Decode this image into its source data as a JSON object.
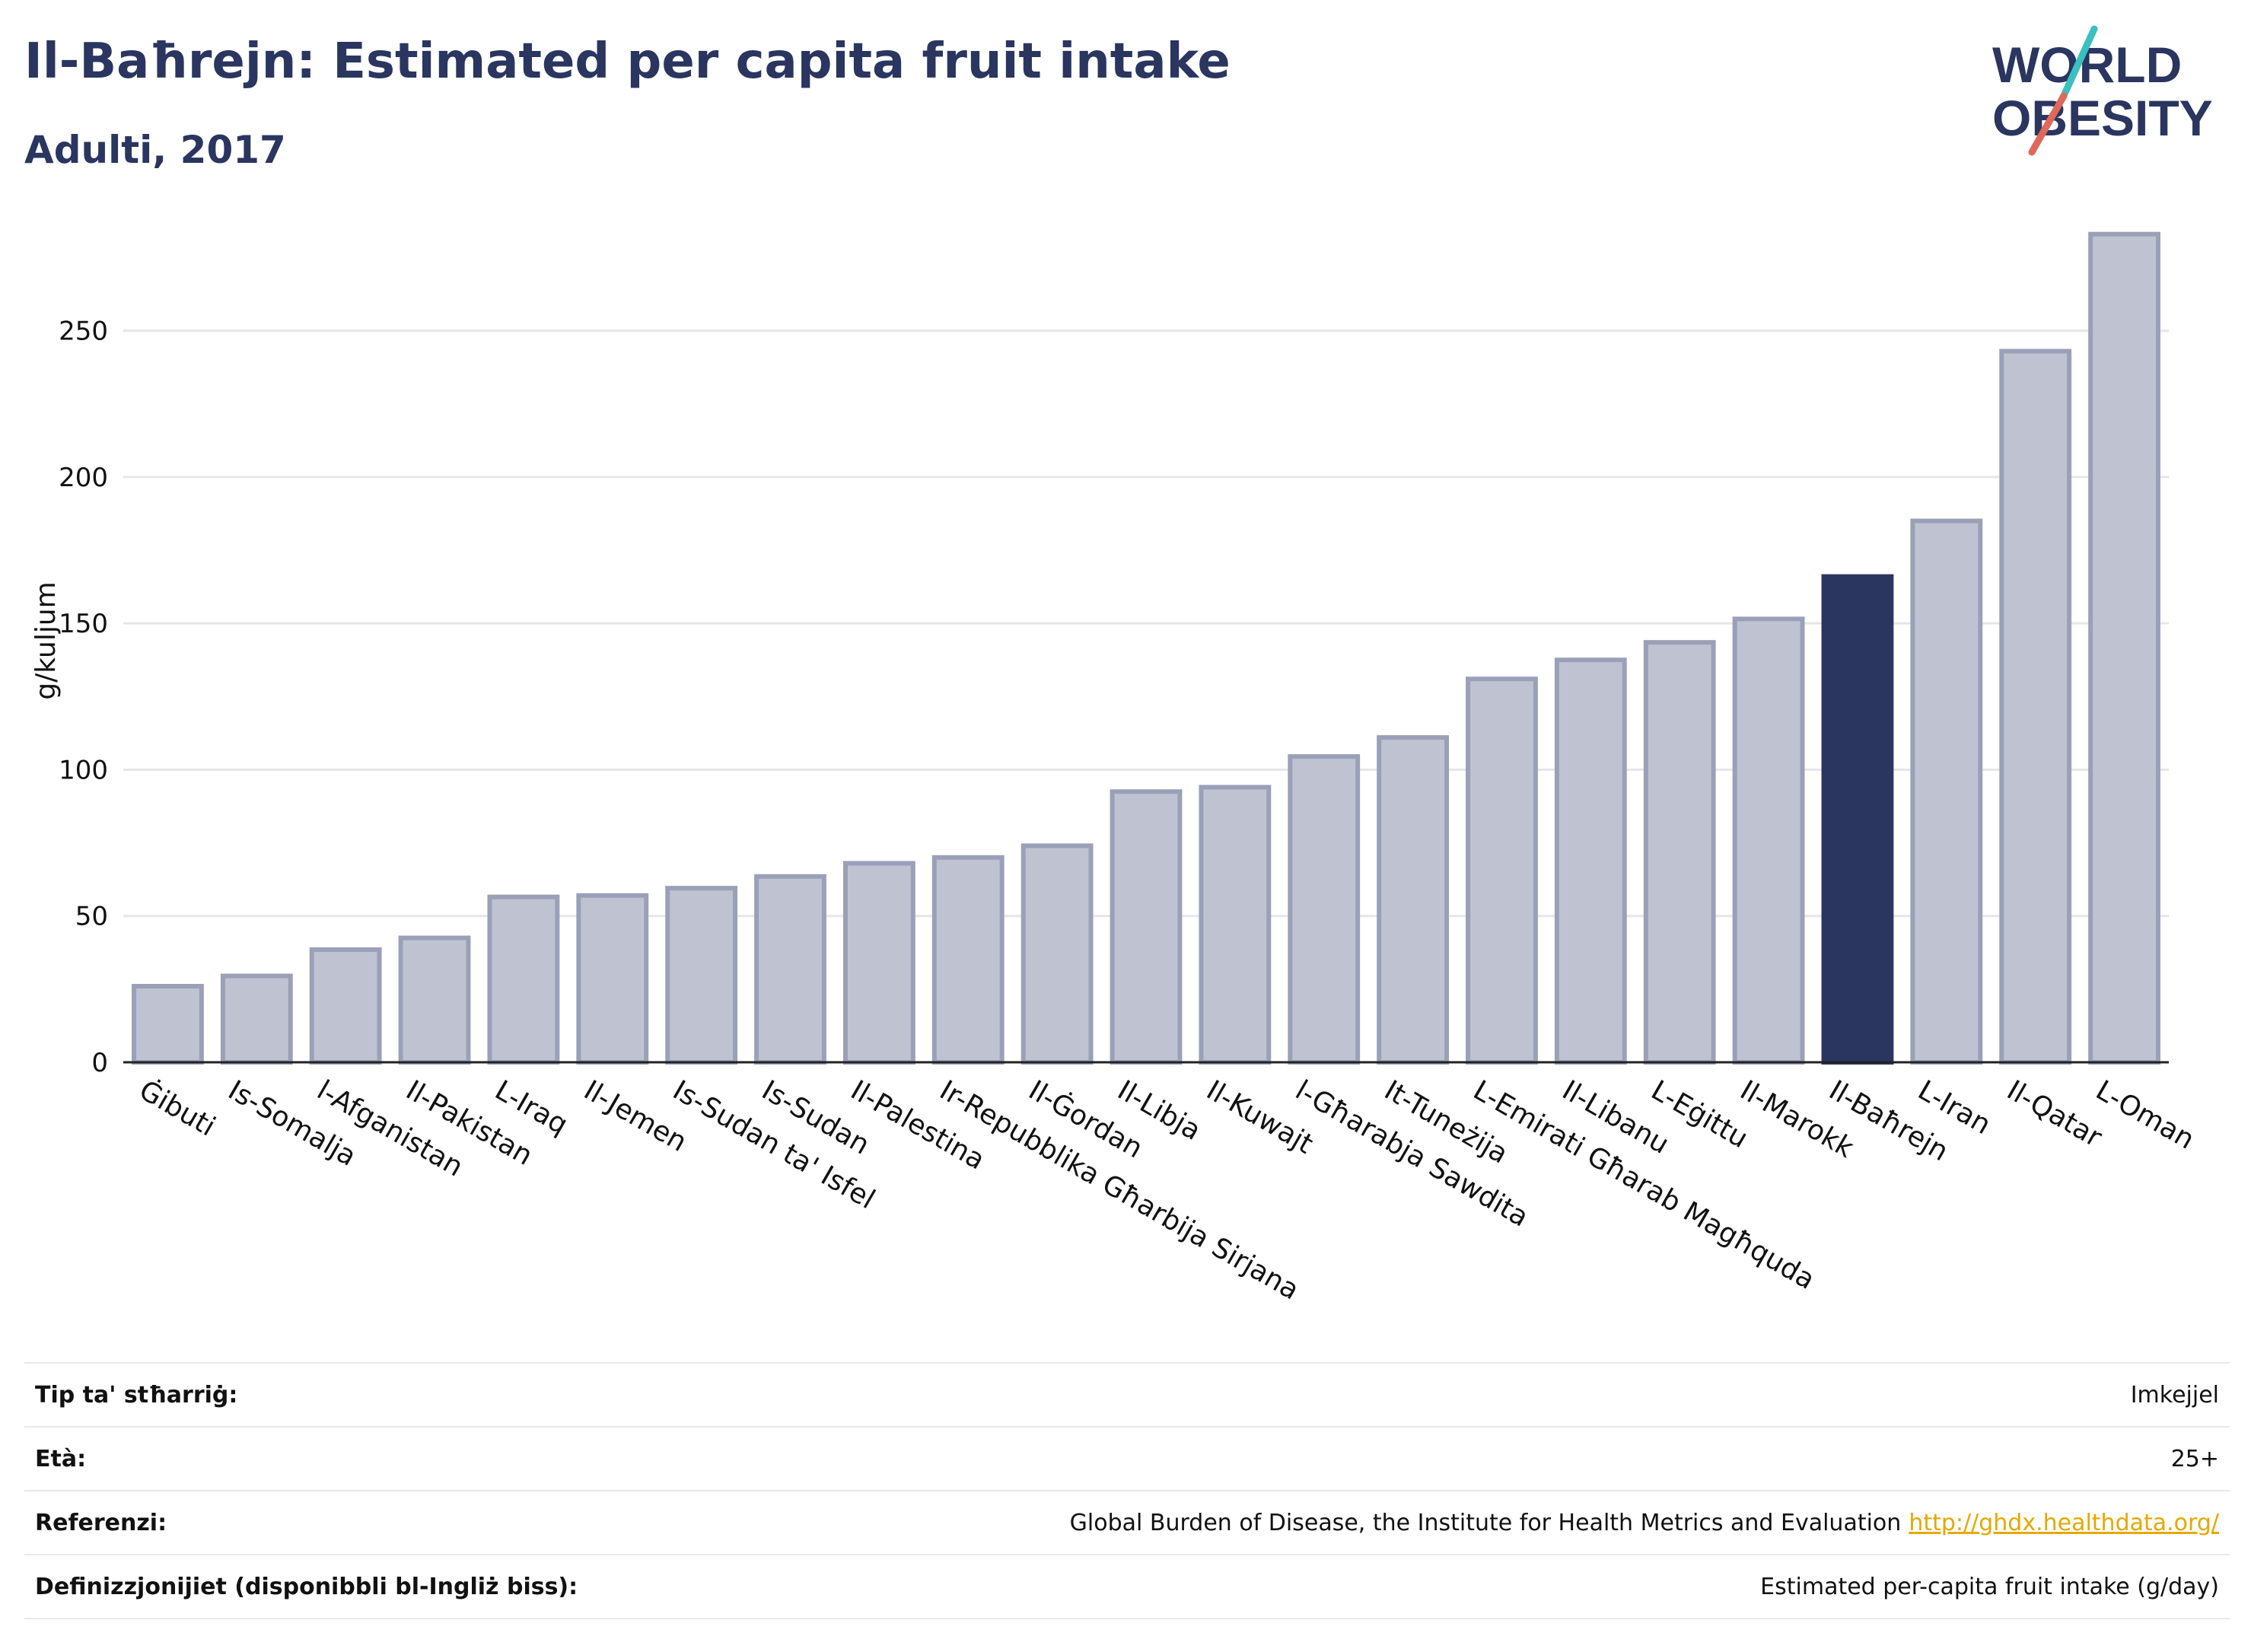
{
  "header": {
    "title": "Il-Baħrejn: Estimated per capita fruit intake",
    "subtitle": "Adulti, 2017"
  },
  "logo": {
    "line1": "WORLD",
    "line2": "OBESITY",
    "colors": {
      "text": "#2a3560",
      "slash_teal": "#3bbfbf",
      "slash_red": "#e0685a"
    }
  },
  "chart_data": {
    "type": "bar",
    "title": "Il-Baħrejn: Estimated per capita fruit intake",
    "subtitle": "Adulti, 2017",
    "xlabel": "",
    "ylabel": "g/kuljum",
    "ylim": [
      0,
      285
    ],
    "yticks": [
      0,
      50,
      100,
      150,
      200,
      250
    ],
    "grid": true,
    "highlight": "Il-Baħrejn",
    "colors": {
      "bar": "#bfc3d1",
      "bar_border": "#9aa0b8",
      "highlight": "#2a3560",
      "grid": "#e6e6ea"
    },
    "categories": [
      "Ġibuti",
      "Is-Somalja",
      "l-Afganistan",
      "Il-Pakistan",
      "L-Iraq",
      "Il-Jemen",
      "Is-Sudan ta' Isfel",
      "Is-Sudan",
      "Il-Palestina",
      "Ir-Repubblika Għarbija Sirjana",
      "Il-Ġordan",
      "Il-Libja",
      "Il-Kuwajt",
      "l-Għarabja Sawdita",
      "It-Tuneżija",
      "L-Emirati Għarab Magħquda",
      "Il-Libanu",
      "L-Eġittu",
      "Il-Marokk",
      "Il-Baħrejn",
      "L-Iran",
      "Il-Qatar",
      "L-Oman"
    ],
    "values": [
      26,
      29.5,
      38.5,
      42.5,
      56.5,
      57,
      59.5,
      63.5,
      68,
      70,
      74,
      92.5,
      94,
      104.5,
      111,
      131,
      137.5,
      143.5,
      151.5,
      166,
      185,
      243,
      283
    ]
  },
  "info": [
    {
      "label": "Tip ta' stħarriġ:",
      "value": "Imkejjel"
    },
    {
      "label": "Età:",
      "value": "25+"
    },
    {
      "label": "Referenzi:",
      "value": "Global Burden of Disease, the Institute for Health Metrics and Evaluation",
      "link": "http://ghdx.healthdata.org/"
    },
    {
      "label": "Definizzjonijiet (disponibbli bl-Ingliż biss):",
      "value": "Estimated per-capita fruit intake (g/day)"
    }
  ]
}
